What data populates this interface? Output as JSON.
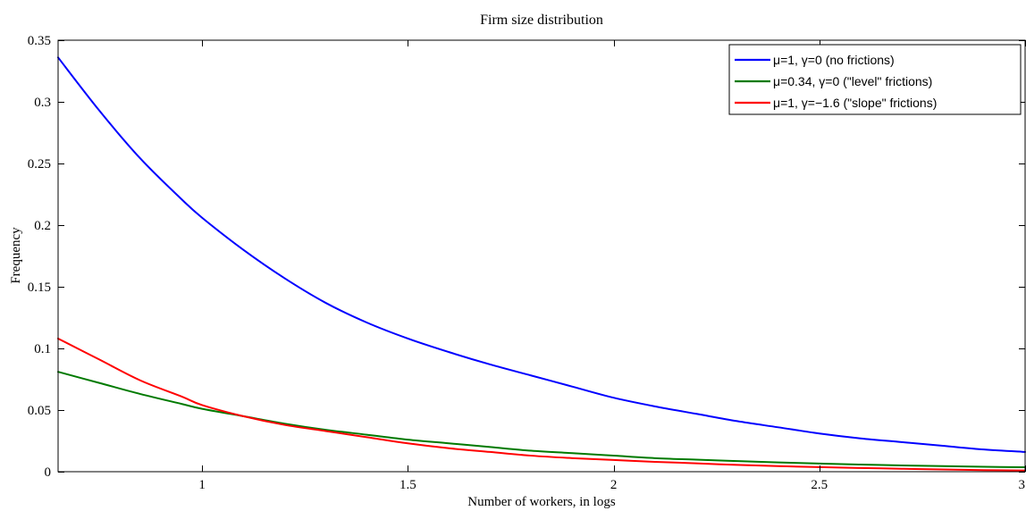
{
  "chart_data": {
    "type": "line",
    "title": "Firm size distribution",
    "xlabel": "Number of workers, in logs",
    "ylabel": "Frequency",
    "xlim": [
      0.65,
      3.0
    ],
    "ylim": [
      0,
      0.35
    ],
    "xticks": [
      1,
      1.5,
      2,
      2.5,
      3
    ],
    "xtick_labels": [
      "1",
      "1.5",
      "2",
      "2.5",
      "3"
    ],
    "yticks": [
      0,
      0.05,
      0.1,
      0.15,
      0.2,
      0.25,
      0.3,
      0.35
    ],
    "ytick_labels": [
      "0",
      "0.05",
      "0.1",
      "0.15",
      "0.2",
      "0.25",
      "0.3",
      "0.35"
    ],
    "grid": false,
    "legend_position": "top-right",
    "x": [
      0.65,
      0.75,
      0.85,
      0.95,
      1.0,
      1.1,
      1.2,
      1.3,
      1.4,
      1.5,
      1.6,
      1.7,
      1.8,
      1.9,
      2.0,
      2.1,
      2.2,
      2.3,
      2.4,
      2.5,
      2.6,
      2.7,
      2.8,
      2.9,
      3.0
    ],
    "series": [
      {
        "name": "μ=1,  γ=0  (no frictions)",
        "color": "#0000ff",
        "values": [
          0.336,
          0.293,
          0.254,
          0.221,
          0.206,
          0.18,
          0.157,
          0.137,
          0.121,
          0.108,
          0.097,
          0.087,
          0.078,
          0.069,
          0.06,
          0.053,
          0.047,
          0.041,
          0.036,
          0.031,
          0.027,
          0.024,
          0.021,
          0.018,
          0.016
        ]
      },
      {
        "name": "μ=0.34,  γ=0  (\"level\"  frictions)",
        "color": "#007a00",
        "values": [
          0.081,
          0.072,
          0.063,
          0.055,
          0.051,
          0.045,
          0.039,
          0.034,
          0.03,
          0.026,
          0.023,
          0.02,
          0.017,
          0.015,
          0.013,
          0.011,
          0.0098,
          0.0086,
          0.0075,
          0.0066,
          0.0058,
          0.0051,
          0.0045,
          0.004,
          0.0036
        ]
      },
      {
        "name": "μ=1,  γ=−1.6  (\"slope\"  frictions)",
        "color": "#ff0000",
        "values": [
          0.108,
          0.091,
          0.074,
          0.061,
          0.054,
          0.045,
          0.038,
          0.033,
          0.028,
          0.023,
          0.019,
          0.016,
          0.013,
          0.011,
          0.0095,
          0.008,
          0.0068,
          0.0055,
          0.0045,
          0.0037,
          0.003,
          0.0024,
          0.0018,
          0.0013,
          0.001
        ]
      }
    ]
  }
}
